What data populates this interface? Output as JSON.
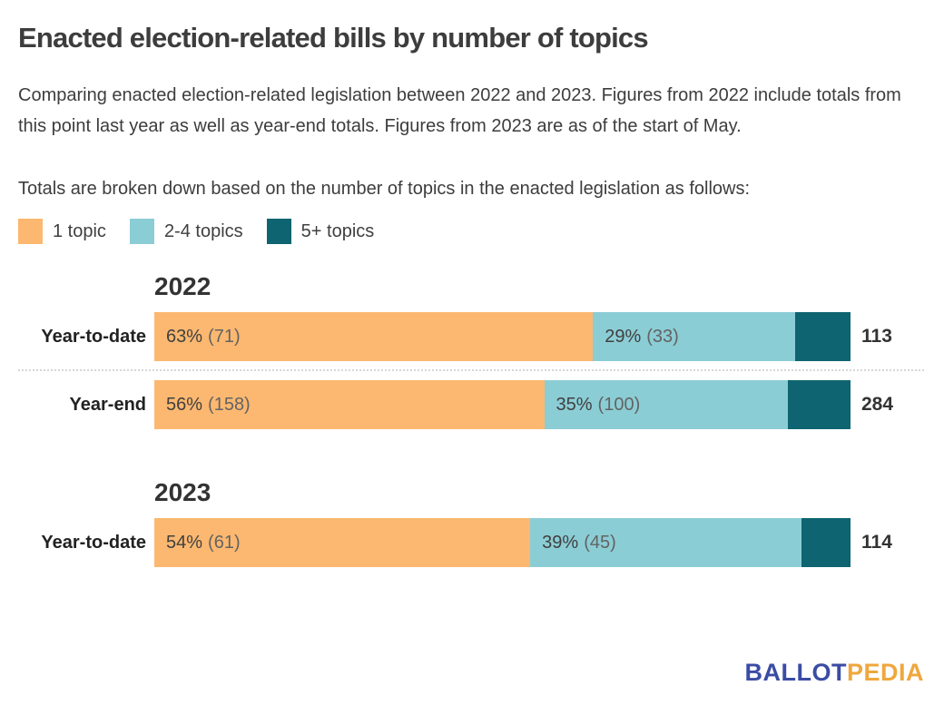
{
  "page": {
    "title": "Enacted election-related bills by number of topics",
    "description": "Comparing enacted election-related legislation between 2022 and 2023. Figures from 2022 include totals from this point last year as well as year-end totals. Figures from 2023 are as of the start of May.",
    "breakdown_note": "Totals are broken down based on the number of topics in the enacted legislation as follows:"
  },
  "colors": {
    "one_topic": "#FCB870",
    "two_four_topics": "#8BCDD5",
    "five_plus_topics": "#0E6470",
    "logo_blue": "#3A4CA4",
    "logo_orange": "#F0A73C",
    "separator_gray": "#D6D6D6"
  },
  "legend": [
    {
      "label": "1 topic",
      "color": "#FCB870"
    },
    {
      "label": "2-4 topics",
      "color": "#8BCDD5"
    },
    {
      "label": "5+ topics",
      "color": "#0E6470"
    }
  ],
  "chart_data": {
    "type": "bar",
    "orientation": "horizontal",
    "stacked": true,
    "unit": "enacted bills",
    "series_names": [
      "1 topic",
      "2-4 topics",
      "5+ topics"
    ],
    "groups": [
      {
        "year": "2022",
        "rows": [
          {
            "label": "Year-to-date",
            "total": "113",
            "segments": [
              {
                "series": "1 topic",
                "pct": 63,
                "count": 71,
                "pct_label": "63%",
                "count_label": "(71)"
              },
              {
                "series": "2-4 topics",
                "pct": 29,
                "count": 33,
                "pct_label": "29%",
                "count_label": "(33)"
              },
              {
                "series": "5+ topics",
                "pct": 8,
                "count": 9,
                "pct_label": "",
                "count_label": ""
              }
            ]
          },
          {
            "label": "Year-end",
            "total": "284",
            "segments": [
              {
                "series": "1 topic",
                "pct": 56,
                "count": 158,
                "pct_label": "56%",
                "count_label": "(158)"
              },
              {
                "series": "2-4 topics",
                "pct": 35,
                "count": 100,
                "pct_label": "35%",
                "count_label": "(100)"
              },
              {
                "series": "5+ topics",
                "pct": 9,
                "count": 26,
                "pct_label": "",
                "count_label": ""
              }
            ]
          }
        ]
      },
      {
        "year": "2023",
        "rows": [
          {
            "label": "Year-to-date",
            "total": "114",
            "segments": [
              {
                "series": "1 topic",
                "pct": 54,
                "count": 61,
                "pct_label": "54%",
                "count_label": "(61)"
              },
              {
                "series": "2-4 topics",
                "pct": 39,
                "count": 45,
                "pct_label": "39%",
                "count_label": "(45)"
              },
              {
                "series": "5+ topics",
                "pct": 7,
                "count": 8,
                "pct_label": "",
                "count_label": ""
              }
            ]
          }
        ]
      }
    ]
  },
  "logo": {
    "text_primary": "BALLOT",
    "text_secondary": "PEDIA"
  }
}
